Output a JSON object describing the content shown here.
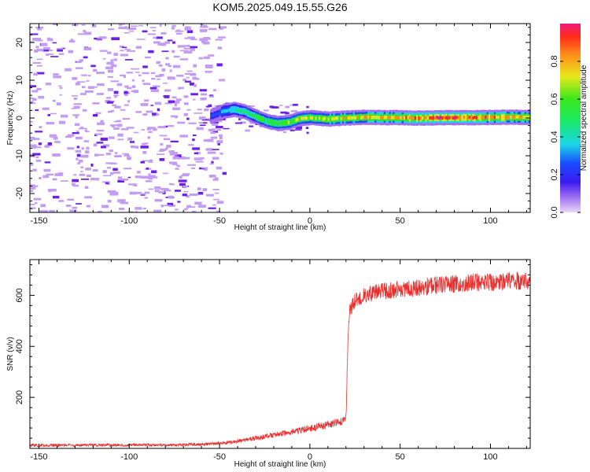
{
  "title": "KOM5.2025.049.15.55.G26",
  "colors": {
    "snr_line": "#e8302f",
    "axis": "#000000",
    "noise_light": "#c39df2",
    "noise_dark": "#6a22e8"
  },
  "chart_data": [
    {
      "id": "spectrogram",
      "type": "heatmap",
      "title": "KOM5.2025.049.15.55.G26",
      "xlabel": "Height of straight line (km)",
      "ylabel": "Frequency (Hz)",
      "xlim": [
        -155,
        122
      ],
      "ylim": [
        -25,
        25
      ],
      "x_ticks": [
        -150,
        -100,
        -50,
        0,
        50,
        100
      ],
      "y_ticks": [
        -20,
        -10,
        0,
        10,
        20
      ],
      "colorbar": {
        "label": "Normalized spectral amplitude",
        "range": [
          0,
          1
        ],
        "ticks": [
          0.0,
          0.2,
          0.4,
          0.6,
          0.8
        ],
        "colormap": "hsv-rainbow (violet low, red high)"
      },
      "signal_track": [
        {
          "x": -55,
          "freq": 0.5,
          "amp": 0.25
        },
        {
          "x": -48,
          "freq": 1.8,
          "amp": 0.4
        },
        {
          "x": -42,
          "freq": 2.3,
          "amp": 0.5
        },
        {
          "x": -36,
          "freq": 1.6,
          "amp": 0.55
        },
        {
          "x": -30,
          "freq": 0.3,
          "amp": 0.6
        },
        {
          "x": -24,
          "freq": -0.9,
          "amp": 0.62
        },
        {
          "x": -18,
          "freq": -1.4,
          "amp": 0.65
        },
        {
          "x": -12,
          "freq": -1.2,
          "amp": 0.68
        },
        {
          "x": -6,
          "freq": -0.2,
          "amp": 0.7
        },
        {
          "x": 0,
          "freq": 0.1,
          "amp": 0.72
        },
        {
          "x": 10,
          "freq": -0.3,
          "amp": 0.75
        },
        {
          "x": 20,
          "freq": 0.0,
          "amp": 0.78
        },
        {
          "x": 30,
          "freq": 0.2,
          "amp": 0.8
        },
        {
          "x": 45,
          "freq": 0.1,
          "amp": 0.82
        },
        {
          "x": 60,
          "freq": 0.0,
          "amp": 0.9
        },
        {
          "x": 75,
          "freq": 0.1,
          "amp": 0.95
        },
        {
          "x": 90,
          "freq": 0.1,
          "amp": 0.9
        },
        {
          "x": 105,
          "freq": 0.2,
          "amp": 0.85
        },
        {
          "x": 122,
          "freq": 0.2,
          "amp": 0.8
        }
      ],
      "noise_region_x": [
        -155,
        -55
      ]
    },
    {
      "id": "snr",
      "type": "line",
      "xlabel": "Height of straight line (km)",
      "ylabel": "SNR (v/v)",
      "xlim": [
        -155,
        122
      ],
      "ylim": [
        0,
        740
      ],
      "x_ticks": [
        -150,
        -100,
        -50,
        0,
        50,
        100
      ],
      "y_ticks": [
        200,
        400,
        600
      ],
      "series": [
        {
          "x": [
            -155,
            -140,
            -120,
            -100,
            -80,
            -60,
            -50,
            -40,
            -30,
            -20,
            -10,
            0,
            10,
            18,
            20,
            21,
            22,
            25,
            30,
            40,
            50,
            60,
            70,
            80,
            90,
            100,
            110,
            122
          ],
          "y": [
            12,
            12,
            13,
            13,
            14,
            16,
            20,
            28,
            40,
            52,
            65,
            78,
            92,
            105,
            115,
            400,
            540,
            580,
            600,
            615,
            625,
            630,
            640,
            645,
            650,
            650,
            655,
            660
          ]
        }
      ]
    }
  ]
}
